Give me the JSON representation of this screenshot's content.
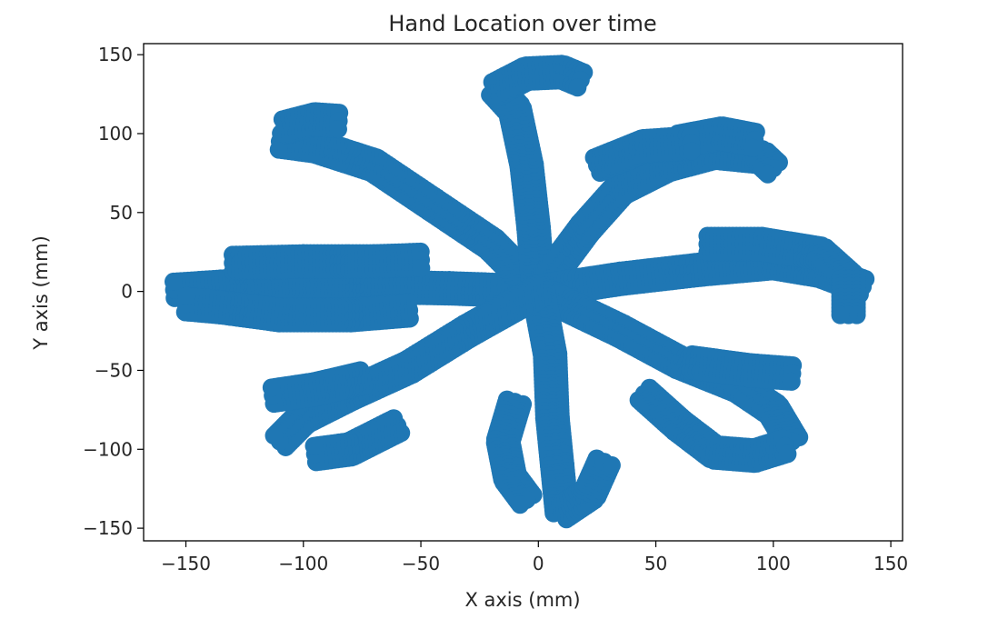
{
  "chart_data": {
    "type": "scatter",
    "title": "Hand Location over time",
    "xlabel": "X axis (mm)",
    "ylabel": "Y axis (mm)",
    "xlim": [
      -168,
      155
    ],
    "ylim": [
      -158,
      157
    ],
    "xticks": [
      -150,
      -100,
      -50,
      0,
      50,
      100,
      150
    ],
    "yticks": [
      -150,
      -100,
      -50,
      0,
      50,
      100,
      150
    ],
    "xtick_labels": [
      "−150",
      "−100",
      "−50",
      "0",
      "50",
      "100",
      "150"
    ],
    "ytick_labels": [
      "−150",
      "−100",
      "−50",
      "0",
      "50",
      "100",
      "150"
    ],
    "grid": false,
    "marker_color": "#1f77b4",
    "series": [
      {
        "values_description": "",
        "strokes": [
          [
            [
              0,
              0
            ],
            [
              -38,
              2
            ],
            [
              -75,
              3
            ],
            [
              -110,
              5
            ],
            [
              -135,
              3
            ],
            [
              -155,
              1
            ]
          ],
          [
            [
              0,
              0
            ],
            [
              -20,
              30
            ],
            [
              -45,
              55
            ],
            [
              -70,
              80
            ],
            [
              -95,
              92
            ],
            [
              -110,
              95
            ]
          ],
          [
            [
              -108,
              104
            ],
            [
              -95,
              109
            ],
            [
              -85,
              108
            ]
          ],
          [
            [
              0,
              0
            ],
            [
              -2,
              40
            ],
            [
              -5,
              80
            ],
            [
              -10,
              115
            ],
            [
              -18,
              128
            ],
            [
              -5,
              138
            ],
            [
              10,
              139
            ],
            [
              18,
              134
            ]
          ],
          [
            [
              0,
              0
            ],
            [
              20,
              40
            ],
            [
              35,
              65
            ],
            [
              55,
              80
            ],
            [
              75,
              88
            ],
            [
              95,
              85
            ],
            [
              100,
              78
            ]
          ],
          [
            [
              60,
              95
            ],
            [
              78,
              100
            ],
            [
              92,
              96
            ]
          ],
          [
            [
              25,
              80
            ],
            [
              45,
              92
            ],
            [
              65,
              94
            ]
          ],
          [
            [
              0,
              0
            ],
            [
              35,
              8
            ],
            [
              70,
              14
            ],
            [
              100,
              18
            ],
            [
              120,
              13
            ],
            [
              138,
              3
            ]
          ],
          [
            [
              72,
              30
            ],
            [
              95,
              30
            ],
            [
              120,
              24
            ],
            [
              132,
              8
            ],
            [
              132,
              -15
            ]
          ],
          [
            [
              0,
              0
            ],
            [
              35,
              -25
            ],
            [
              60,
              -45
            ],
            [
              85,
              -60
            ],
            [
              100,
              -75
            ],
            [
              108,
              -95
            ]
          ],
          [
            [
              45,
              -65
            ],
            [
              60,
              -85
            ],
            [
              75,
              -102
            ],
            [
              92,
              -104
            ],
            [
              105,
              -98
            ]
          ],
          [
            [
              65,
              -45
            ],
            [
              90,
              -50
            ],
            [
              108,
              -52
            ]
          ],
          [
            [
              0,
              0
            ],
            [
              5,
              -40
            ],
            [
              6,
              -80
            ],
            [
              8,
              -110
            ],
            [
              10,
              -140
            ],
            [
              22,
              -128
            ],
            [
              28,
              -108
            ]
          ],
          [
            [
              -10,
              -70
            ],
            [
              -15,
              -95
            ],
            [
              -12,
              -118
            ],
            [
              -5,
              -132
            ]
          ],
          [
            [
              0,
              0
            ],
            [
              -30,
              -25
            ],
            [
              -55,
              -48
            ],
            [
              -80,
              -65
            ],
            [
              -100,
              -80
            ],
            [
              -110,
              -95
            ]
          ],
          [
            [
              -75,
              -55
            ],
            [
              -95,
              -62
            ],
            [
              -113,
              -66
            ]
          ],
          [
            [
              -60,
              -85
            ],
            [
              -80,
              -100
            ],
            [
              -95,
              -103
            ]
          ],
          [
            [
              -55,
              -12
            ],
            [
              -80,
              -15
            ],
            [
              -110,
              -15
            ],
            [
              -135,
              -10
            ],
            [
              -150,
              -8
            ]
          ],
          [
            [
              -130,
              18
            ],
            [
              -100,
              19
            ],
            [
              -70,
              19
            ],
            [
              -50,
              20
            ]
          ]
        ]
      }
    ]
  }
}
